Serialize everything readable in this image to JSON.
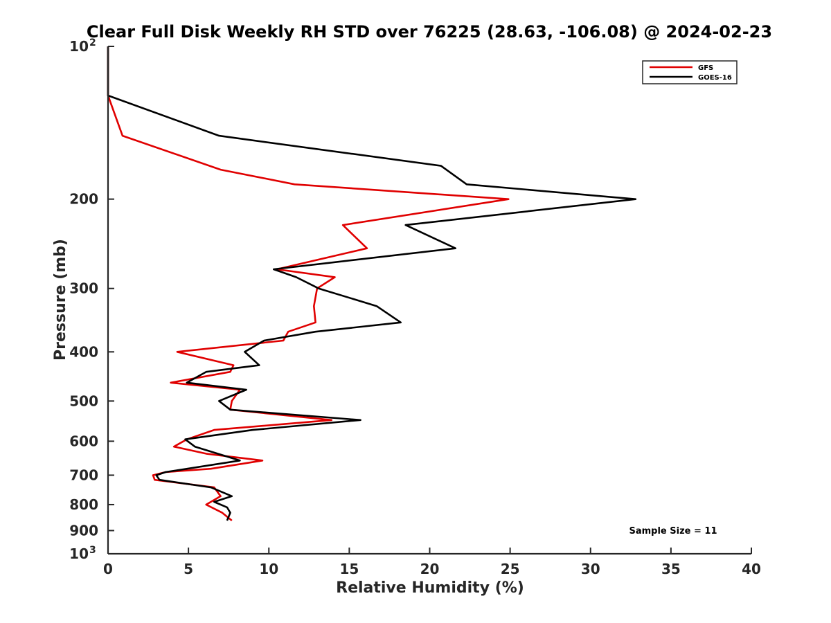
{
  "chart_data": {
    "type": "line",
    "title": "Clear Full Disk Weekly RH STD over 76225 (28.63, -106.08) @ 2024-02-23",
    "xlabel": "Relative Humidity (%)",
    "ylabel": "Pressure (mb)",
    "xlim": [
      0,
      40
    ],
    "ylim": [
      100,
      1000
    ],
    "y_scale": "log",
    "y_reversed": true,
    "x_ticks": [
      0,
      5,
      10,
      15,
      20,
      25,
      30,
      35,
      40
    ],
    "y_ticks": [
      {
        "value": 100,
        "label": "10",
        "sup": "2"
      },
      {
        "value": 200,
        "label": "200"
      },
      {
        "value": 300,
        "label": "300"
      },
      {
        "value": 400,
        "label": "400"
      },
      {
        "value": 500,
        "label": "500"
      },
      {
        "value": 600,
        "label": "600"
      },
      {
        "value": 700,
        "label": "700"
      },
      {
        "value": 800,
        "label": "800"
      },
      {
        "value": 900,
        "label": "900"
      },
      {
        "value": 1000,
        "label": "10",
        "sup": "3"
      }
    ],
    "legend_position": "top-right",
    "annotation": "Sample Size = 11",
    "series": [
      {
        "name": "GFS",
        "color": "#e00000",
        "points": [
          {
            "x": 0.0,
            "y": 100
          },
          {
            "x": 0.0,
            "y": 125
          },
          {
            "x": 0.9,
            "y": 150
          },
          {
            "x": 7.0,
            "y": 175
          },
          {
            "x": 11.6,
            "y": 187
          },
          {
            "x": 24.9,
            "y": 200
          },
          {
            "x": 14.6,
            "y": 225
          },
          {
            "x": 16.1,
            "y": 250
          },
          {
            "x": 10.5,
            "y": 275
          },
          {
            "x": 14.1,
            "y": 285
          },
          {
            "x": 13.0,
            "y": 300
          },
          {
            "x": 12.8,
            "y": 325
          },
          {
            "x": 12.9,
            "y": 350
          },
          {
            "x": 11.2,
            "y": 365
          },
          {
            "x": 10.9,
            "y": 380
          },
          {
            "x": 4.3,
            "y": 400
          },
          {
            "x": 7.8,
            "y": 425
          },
          {
            "x": 7.6,
            "y": 438
          },
          {
            "x": 3.9,
            "y": 460
          },
          {
            "x": 8.2,
            "y": 475
          },
          {
            "x": 7.7,
            "y": 500
          },
          {
            "x": 7.6,
            "y": 520
          },
          {
            "x": 13.9,
            "y": 545
          },
          {
            "x": 6.6,
            "y": 570
          },
          {
            "x": 4.9,
            "y": 595
          },
          {
            "x": 4.1,
            "y": 615
          },
          {
            "x": 6.1,
            "y": 635
          },
          {
            "x": 9.6,
            "y": 655
          },
          {
            "x": 6.4,
            "y": 680
          },
          {
            "x": 3.6,
            "y": 690
          },
          {
            "x": 2.8,
            "y": 700
          },
          {
            "x": 2.9,
            "y": 715
          },
          {
            "x": 6.6,
            "y": 740
          },
          {
            "x": 7.0,
            "y": 770
          },
          {
            "x": 6.1,
            "y": 800
          },
          {
            "x": 7.1,
            "y": 830
          },
          {
            "x": 7.7,
            "y": 860
          }
        ]
      },
      {
        "name": "GOES-16",
        "color": "#000000",
        "points": [
          {
            "x": 0.0,
            "y": 100
          },
          {
            "x": 0.0,
            "y": 125
          },
          {
            "x": 6.9,
            "y": 150
          },
          {
            "x": 20.7,
            "y": 172
          },
          {
            "x": 22.3,
            "y": 187
          },
          {
            "x": 32.8,
            "y": 200
          },
          {
            "x": 18.5,
            "y": 225
          },
          {
            "x": 21.6,
            "y": 250
          },
          {
            "x": 10.3,
            "y": 275
          },
          {
            "x": 11.7,
            "y": 285
          },
          {
            "x": 13.1,
            "y": 300
          },
          {
            "x": 16.7,
            "y": 325
          },
          {
            "x": 18.2,
            "y": 350
          },
          {
            "x": 12.9,
            "y": 365
          },
          {
            "x": 9.7,
            "y": 380
          },
          {
            "x": 8.5,
            "y": 400
          },
          {
            "x": 9.4,
            "y": 425
          },
          {
            "x": 6.1,
            "y": 438
          },
          {
            "x": 4.9,
            "y": 460
          },
          {
            "x": 8.6,
            "y": 475
          },
          {
            "x": 6.9,
            "y": 500
          },
          {
            "x": 7.6,
            "y": 520
          },
          {
            "x": 15.7,
            "y": 545
          },
          {
            "x": 9.0,
            "y": 570
          },
          {
            "x": 4.8,
            "y": 595
          },
          {
            "x": 5.4,
            "y": 615
          },
          {
            "x": 8.2,
            "y": 655
          },
          {
            "x": 3.6,
            "y": 690
          },
          {
            "x": 3.0,
            "y": 700
          },
          {
            "x": 3.2,
            "y": 715
          },
          {
            "x": 6.4,
            "y": 740
          },
          {
            "x": 7.7,
            "y": 770
          },
          {
            "x": 6.6,
            "y": 790
          },
          {
            "x": 7.4,
            "y": 810
          },
          {
            "x": 7.6,
            "y": 830
          },
          {
            "x": 7.4,
            "y": 860
          }
        ]
      }
    ]
  }
}
